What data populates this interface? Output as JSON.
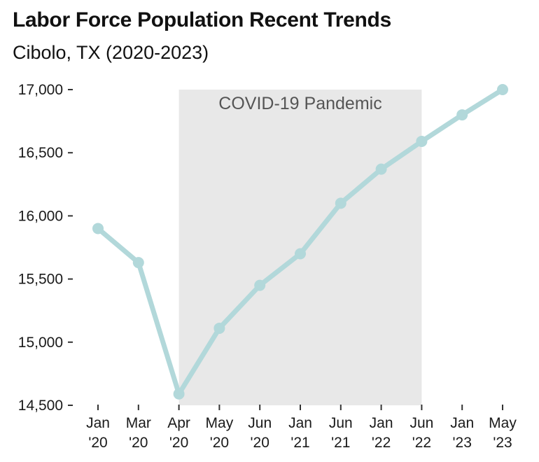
{
  "title": "Labor Force Population Recent Trends",
  "subtitle": "Cibolo, TX (2020-2023)",
  "chart_data": {
    "type": "line",
    "title": "Labor Force Population Recent Trends",
    "subtitle": "Cibolo, TX (2020-2023)",
    "xlabel": "",
    "ylabel": "",
    "categories": [
      [
        "Jan",
        "'20"
      ],
      [
        "Mar",
        "'20"
      ],
      [
        "Apr",
        "'20"
      ],
      [
        "May",
        "'20"
      ],
      [
        "Jun",
        "'20"
      ],
      [
        "Jan",
        "'21"
      ],
      [
        "Jun",
        "'21"
      ],
      [
        "Jan",
        "'22"
      ],
      [
        "Jun",
        "'22"
      ],
      [
        "Jan",
        "'23"
      ],
      [
        "May",
        "'23"
      ]
    ],
    "series": [
      {
        "name": "Labor Force Population",
        "color": "#b2d8da",
        "values": [
          15900,
          15630,
          14590,
          15110,
          15450,
          15700,
          16100,
          16370,
          16590,
          16800,
          17000
        ]
      }
    ],
    "ylim": [
      14500,
      17000
    ],
    "yticks": [
      14500,
      15000,
      15500,
      16000,
      16500,
      17000
    ],
    "ytick_labels": [
      "14,500",
      "15,000",
      "15,500",
      "16,000",
      "16,500",
      "17,000"
    ],
    "grid": false,
    "annotations": [
      {
        "type": "shaded-band",
        "label": "COVID-19 Pandemic",
        "from_category": 2,
        "to_category": 8,
        "color": "#e8e8e8"
      }
    ]
  }
}
